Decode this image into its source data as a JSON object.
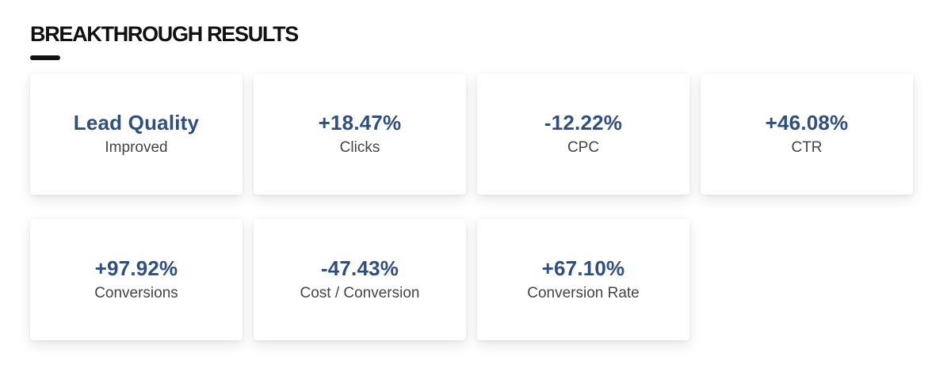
{
  "section": {
    "title": "BREAKTHROUGH RESULTS"
  },
  "cards": [
    {
      "value": "Lead Quality",
      "label": "Improved"
    },
    {
      "value": "+18.47%",
      "label": "Clicks"
    },
    {
      "value": "-12.22%",
      "label": "CPC"
    },
    {
      "value": "+46.08%",
      "label": "CTR"
    },
    {
      "value": "+97.92%",
      "label": "Conversions"
    },
    {
      "value": "-47.43%",
      "label": "Cost / Conversion"
    },
    {
      "value": "+67.10%",
      "label": "Conversion Rate"
    }
  ],
  "colors": {
    "accent": "#2d4f82",
    "title": "#111111",
    "label": "#444444"
  }
}
